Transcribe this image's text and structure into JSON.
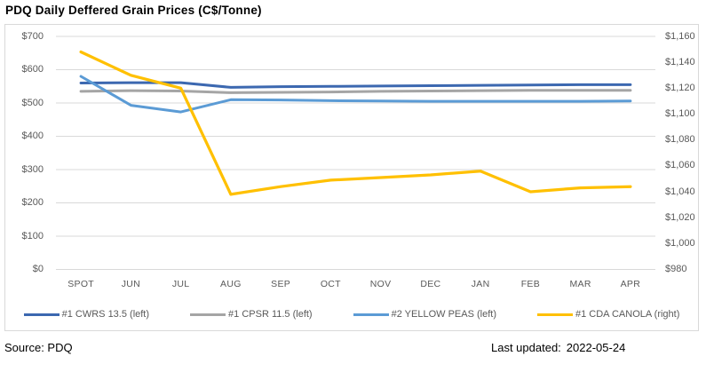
{
  "title": "PDQ Daily Deffered Grain Prices (C$/Tonne)",
  "footer": {
    "source": "Source: PDQ",
    "last_updated_label": "Last updated:",
    "last_updated_value": "2022-05-24"
  },
  "colors": {
    "gridline": "#D9D9D9",
    "chart_border": "#D9D9D9",
    "axis_text": "#595959",
    "title_text": "#000000"
  },
  "chart_data": {
    "type": "line",
    "title": "PDQ Daily Deffered Grain Prices (C$/Tonne)",
    "categories": [
      "SPOT",
      "JUN",
      "JUL",
      "AUG",
      "SEP",
      "OCT",
      "NOV",
      "DEC",
      "JAN",
      "FEB",
      "MAR",
      "APR"
    ],
    "series": [
      {
        "name": "#1 CWRS 13.5 (left)",
        "axis": "left",
        "color": "#3C68B0",
        "values": [
          560,
          561,
          561,
          547,
          549,
          550,
          551,
          552,
          553,
          554,
          555,
          555
        ]
      },
      {
        "name": "#1 CPSR 11.5 (left)",
        "axis": "left",
        "color": "#A5A5A5",
        "values": [
          535,
          537,
          536,
          531,
          532,
          533,
          535,
          536,
          537,
          538,
          538,
          538
        ]
      },
      {
        "name": "#2 YELLOW PEAS (left)",
        "axis": "left",
        "color": "#5B9BD5",
        "values": [
          580,
          493,
          473,
          510,
          509,
          507,
          506,
          505,
          505,
          505,
          505,
          506
        ]
      },
      {
        "name": "#1 CDA CANOLA (right)",
        "axis": "right",
        "color": "#FFC000",
        "values": [
          1148,
          1130,
          1120,
          1038,
          1044,
          1049,
          1051,
          1053,
          1056,
          1040,
          1043,
          1044
        ]
      }
    ],
    "left_axis": {
      "min": 0,
      "max": 700,
      "step": 100,
      "tick_labels": [
        "$0",
        "$100",
        "$200",
        "$300",
        "$400",
        "$500",
        "$600",
        "$700"
      ]
    },
    "right_axis": {
      "min": 980,
      "max": 1160,
      "step": 20,
      "tick_labels": [
        "$980",
        "$1,000",
        "$1,020",
        "$1,040",
        "$1,060",
        "$1,080",
        "$1,100",
        "$1,120",
        "$1,140",
        "$1,160"
      ]
    },
    "grid": "horizontal gridlines for left (primary) axis only",
    "legend_position": "bottom"
  }
}
